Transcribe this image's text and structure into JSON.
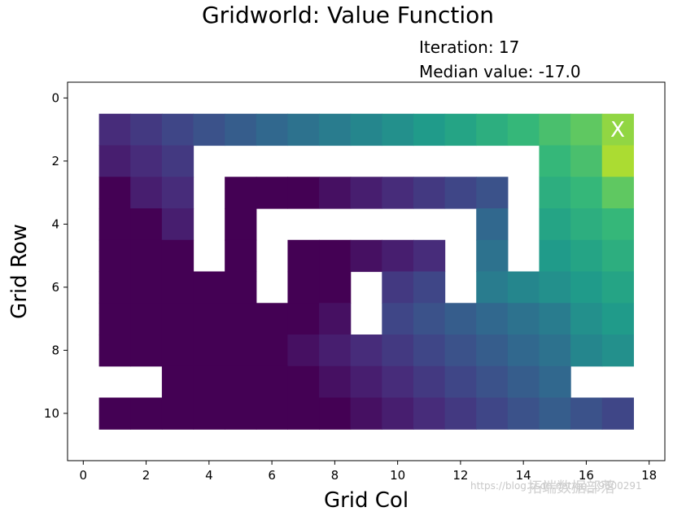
{
  "header": {
    "title": "Gridworld: Value Function",
    "annotation_line1": "Iteration: 17",
    "annotation_line2": "Median value: -17.0"
  },
  "watermark": {
    "url": "https://blog.csdn.net/qq_19600291",
    "logo": "拓端数据部落"
  },
  "chart_data": {
    "type": "heatmap",
    "title": "Gridworld: Value Function",
    "xlabel": "Grid Col",
    "ylabel": "Grid Row",
    "xlim": [
      -0.5,
      18.5
    ],
    "ylim": [
      11.5,
      -0.5
    ],
    "x_ticks": [
      0,
      2,
      4,
      6,
      8,
      10,
      12,
      14,
      16,
      18
    ],
    "y_ticks": [
      0,
      2,
      4,
      6,
      8,
      10
    ],
    "colormap": "viridis",
    "value_range": [
      -24,
      0
    ],
    "goal_marker": {
      "row": 1,
      "col": 17,
      "label": "X"
    },
    "rows": [
      {
        "row": 1,
        "values": [
          null,
          -21,
          -20,
          -19,
          -18,
          -17,
          -16,
          -15,
          -14,
          -13,
          -12,
          -11,
          -10,
          -9,
          -8,
          -7,
          -6,
          -4,
          null
        ]
      },
      {
        "row": 2,
        "values": [
          null,
          -22,
          -21,
          -20,
          null,
          null,
          null,
          null,
          null,
          null,
          null,
          null,
          null,
          null,
          null,
          -8,
          -7,
          -3,
          null
        ]
      },
      {
        "row": 3,
        "values": [
          null,
          -24,
          -22,
          -21,
          null,
          -24,
          -24,
          -24,
          -23,
          -22,
          -21,
          -20,
          -19,
          -18,
          null,
          -9,
          -8,
          -6,
          null
        ]
      },
      {
        "row": 4,
        "values": [
          null,
          -24,
          -24,
          -22,
          null,
          -24,
          null,
          null,
          null,
          null,
          null,
          null,
          null,
          -16,
          null,
          -10,
          -9,
          -8,
          null
        ]
      },
      {
        "row": 5,
        "values": [
          null,
          -24,
          -24,
          -24,
          null,
          -24,
          null,
          -24,
          -24,
          -23,
          -22,
          -21,
          null,
          -15,
          null,
          -11,
          -10,
          -9,
          null
        ]
      },
      {
        "row": 6,
        "values": [
          null,
          -24,
          -24,
          -24,
          -24,
          -24,
          null,
          -24,
          -24,
          null,
          -20,
          -19,
          null,
          -14,
          -13,
          -12,
          -11,
          -10,
          null
        ]
      },
      {
        "row": 7,
        "values": [
          null,
          -24,
          -24,
          -24,
          -24,
          -24,
          -24,
          -24,
          -23,
          null,
          -19,
          -18,
          -17,
          -16,
          -15,
          -14,
          -12,
          -11,
          null
        ]
      },
      {
        "row": 8,
        "values": [
          null,
          -24,
          -24,
          -24,
          -24,
          -24,
          -24,
          -23,
          -22,
          -21,
          -20,
          -19,
          -18,
          -17,
          -16,
          -15,
          -13,
          -12,
          null
        ]
      },
      {
        "row": 9,
        "values": [
          null,
          null,
          null,
          -24,
          -24,
          -24,
          -24,
          -24,
          -23,
          -22,
          -21,
          -20,
          -19,
          -18,
          -17,
          -16,
          null,
          null,
          null
        ]
      },
      {
        "row": 10,
        "values": [
          null,
          -24,
          -24,
          -24,
          -24,
          -24,
          -24,
          -24,
          -24,
          -23,
          -22,
          -21,
          -20,
          -19,
          -18,
          -17,
          -18,
          -19,
          null
        ]
      }
    ]
  }
}
